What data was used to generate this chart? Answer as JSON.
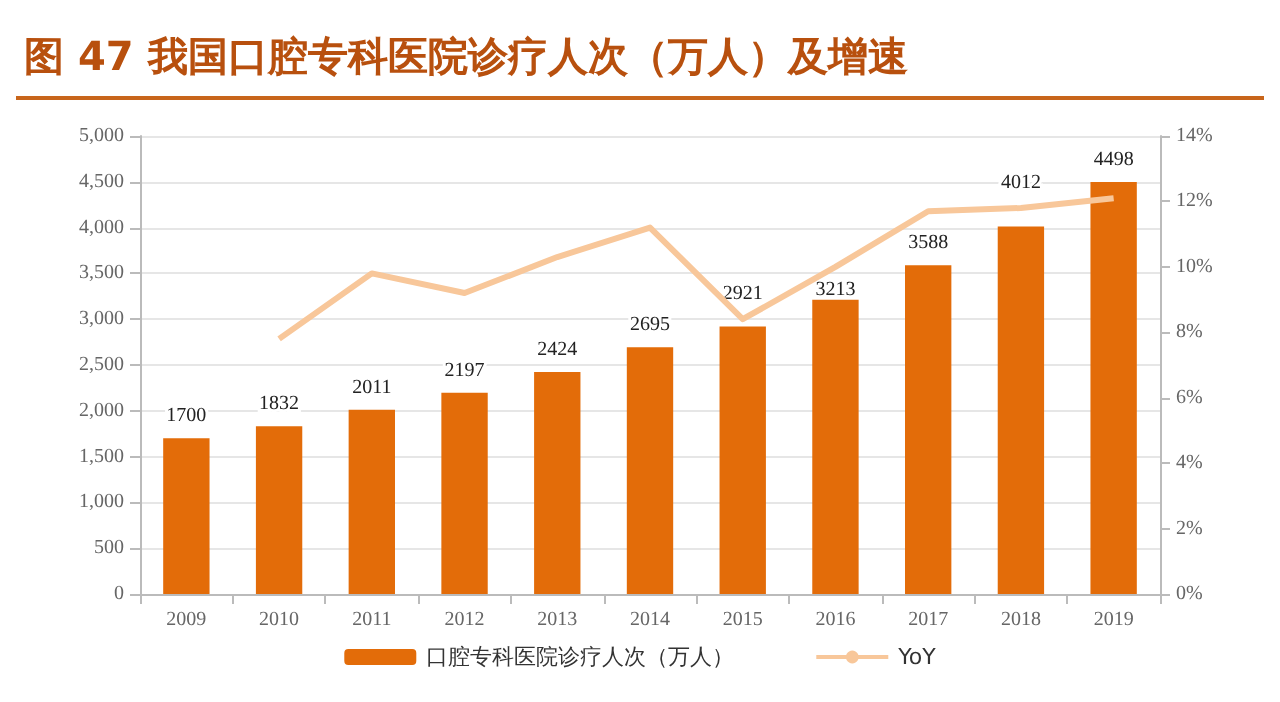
{
  "chart_data": {
    "type": "bar",
    "title": "图 47  我国口腔专科医院诊疗人次（万人）及增速",
    "categories": [
      "2009",
      "2010",
      "2011",
      "2012",
      "2013",
      "2014",
      "2015",
      "2016",
      "2017",
      "2018",
      "2019"
    ],
    "series": [
      {
        "name": "口腔专科医院诊疗人次（万人）",
        "color": "#e36c09",
        "values": [
          1700,
          1832,
          2011,
          2197,
          2424,
          2695,
          2921,
          3213,
          3588,
          4012,
          4498
        ],
        "value_labels": [
          "1700",
          "1832",
          "2011",
          "2197",
          "2424",
          "2695",
          "2921",
          "3213",
          "3588",
          "4012",
          "4498"
        ]
      },
      {
        "name": "YoY",
        "type": "line",
        "axis": "y2",
        "color": "#f8c79a",
        "marker": "none",
        "values": [
          null,
          7.8,
          9.8,
          9.2,
          10.3,
          11.2,
          8.4,
          10.0,
          11.7,
          11.8,
          12.1
        ]
      }
    ],
    "ylim": [
      0,
      5000
    ],
    "yticks": [
      0,
      {
        "value": 500,
        "label": "500"
      },
      {
        "value": 1000,
        "label": "1,000"
      },
      {
        "value": 1500,
        "label": "1,500"
      },
      {
        "value": 2000,
        "label": "2,000"
      },
      {
        "value": 2500,
        "label": "2,500"
      },
      {
        "value": 3000,
        "label": "3,000"
      },
      {
        "value": 3500,
        "label": "3,500"
      },
      {
        "value": 4000,
        "label": "4,000"
      },
      {
        "value": 4500,
        "label": "4,500"
      },
      {
        "value": 5000,
        "label": "5,000"
      }
    ],
    "y2lim": [
      0,
      14
    ],
    "y2ticks": [
      {
        "value": 0,
        "label": "0%"
      },
      {
        "value": 2,
        "label": "2%"
      },
      {
        "value": 4,
        "label": "4%"
      },
      {
        "value": 6,
        "label": "6%"
      },
      {
        "value": 8,
        "label": "8%"
      },
      {
        "value": 10,
        "label": "10%"
      },
      {
        "value": 12,
        "label": "12%"
      },
      {
        "value": 14,
        "label": "14%"
      }
    ],
    "grid": "y",
    "legend": "bottom"
  }
}
